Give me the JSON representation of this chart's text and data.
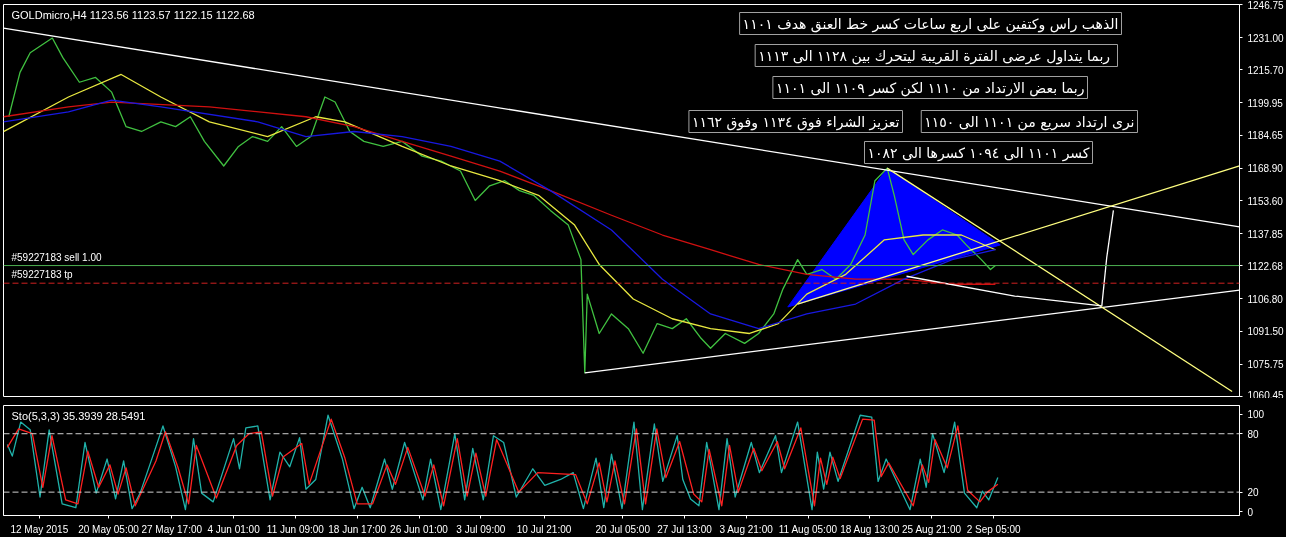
{
  "chart_data": [
    {
      "type": "line",
      "title": "GOLDmicro,H4  1123.56 1123.57 1122.15 1122.68",
      "grid": false,
      "tick_labels": "y",
      "xlim": [
        "2015-05-07T18:00",
        "2015-10-01T09:00"
      ],
      "ylim": [
        1060.45,
        1246.75
      ],
      "yticks": [
        {
          "value": 1246.75,
          "label": "1246.75"
        },
        {
          "value": 1231.0,
          "label": "1231.00"
        },
        {
          "value": 1215.7,
          "label": "1215.70"
        },
        {
          "value": 1199.95,
          "label": "1199.95"
        },
        {
          "value": 1184.65,
          "label": "1184.65"
        },
        {
          "value": 1168.9,
          "label": "1168.90"
        },
        {
          "value": 1153.6,
          "label": "1153.60"
        },
        {
          "value": 1137.85,
          "label": "1137.85"
        },
        {
          "value": 1122.68,
          "label": "1122.68"
        },
        {
          "value": 1106.8,
          "label": "1106.80"
        },
        {
          "value": 1091.5,
          "label": "1091.50"
        },
        {
          "value": 1075.75,
          "label": "1075.75"
        },
        {
          "value": 1060.45,
          "label": "1060.45"
        }
      ],
      "series": [
        {
          "color": "#40c040",
          "x": [
            "2015-05-08T09:00",
            "2015-05-09T17:00",
            "2015-05-10T22:00",
            "2015-05-13T13:00",
            "2015-05-14T19:00",
            "2015-05-16T18:00",
            "2015-05-18T16:00",
            "2015-05-20T14:00",
            "2015-05-22T07:00",
            "2015-05-24T03:00",
            "2015-05-26T10:00",
            "2015-05-28T04:00",
            "2015-05-29T22:00",
            "2015-05-31T14:00",
            "2015-06-02T21:00",
            "2015-06-04T15:00",
            "2015-06-06T07:00",
            "2015-06-08T02:00",
            "2015-06-09T18:00",
            "2015-06-11T12:00",
            "2015-06-13T05:00",
            "2015-06-14T21:00",
            "2015-06-16T02:00",
            "2015-06-17T20:00",
            "2015-06-19T12:00",
            "2015-06-21T19:00",
            "2015-06-24T01:00",
            "2015-06-26T10:00",
            "2015-06-28T16:00",
            "2015-06-30T23:00",
            "2015-07-02T17:00",
            "2015-07-04T10:00",
            "2015-07-06T05:00",
            "2015-07-07T23:00",
            "2015-07-09T16:00",
            "2015-07-11T15:00",
            "2015-07-13T18:00",
            "2015-07-15T06:00",
            "2015-07-15T17:00",
            "2015-07-16T00:00",
            "2015-07-17T10:00",
            "2015-07-18T21:00",
            "2015-07-20T21:00",
            "2015-07-22T15:00",
            "2015-07-24T07:00",
            "2015-07-26T02:00",
            "2015-07-27T18:00",
            "2015-07-29T12:00",
            "2015-07-30T15:00",
            "2015-08-01T09:00",
            "2015-08-03T16:00",
            "2015-08-05T08:00",
            "2015-08-07T03:00",
            "2015-08-08T05:00",
            "2015-08-09T23:00",
            "2015-08-11T01:00",
            "2015-08-12T20:00",
            "2015-08-14T12:00",
            "2015-08-16T06:00",
            "2015-08-17T23:00",
            "2015-08-19T03:00",
            "2015-08-20T14:00",
            "2015-08-21T10:00",
            "2015-08-22T14:00",
            "2015-08-23T16:00",
            "2015-08-25T10:00",
            "2015-08-27T03:00",
            "2015-08-28T21:00",
            "2015-08-29T23:00",
            "2015-08-31T18:00",
            "2015-09-01T20:00",
            "2015-09-02T10:00"
          ],
          "values": [
            1193.4,
            1214.5,
            1223.8,
            1230.8,
            1221.5,
            1209.8,
            1212.1,
            1205.1,
            1188.7,
            1186.4,
            1191.0,
            1188.7,
            1193.4,
            1181.7,
            1170.0,
            1179.3,
            1184.0,
            1181.7,
            1188.7,
            1179.3,
            1184.0,
            1202.8,
            1200.4,
            1186.4,
            1181.7,
            1179.3,
            1181.7,
            1174.7,
            1172.3,
            1167.6,
            1153.6,
            1160.6,
            1163.0,
            1158.3,
            1156.0,
            1148.9,
            1141.9,
            1125.5,
            1071.7,
            1109.1,
            1090.4,
            1099.7,
            1092.7,
            1081.0,
            1095.1,
            1092.7,
            1097.4,
            1088.1,
            1083.4,
            1090.4,
            1085.7,
            1090.4,
            1099.7,
            1111.5,
            1125.5,
            1118.5,
            1120.8,
            1116.2,
            1123.2,
            1137.2,
            1163.0,
            1169.0,
            1156.0,
            1134.9,
            1127.9,
            1134.9,
            1139.6,
            1137.2,
            1132.5,
            1125.5,
            1120.8,
            1122.7
          ]
        },
        {
          "color": "#e8e840",
          "x": [
            "2015-05-07T18:00",
            "2015-05-15T11:00",
            "2015-05-21T17:00",
            "2015-05-26T10:00",
            "2015-06-01T04:00",
            "2015-06-08T02:00",
            "2015-06-13T19:00",
            "2015-06-17T06:00",
            "2015-06-24T01:00",
            "2015-06-29T20:00",
            "2015-07-05T15:00",
            "2015-07-10T07:00",
            "2015-07-14T12:00",
            "2015-07-17T10:00",
            "2015-07-21T11:00",
            "2015-07-26T02:00",
            "2015-07-30T15:00",
            "2015-08-04T06:00",
            "2015-08-07T16:00",
            "2015-08-11T01:00",
            "2015-08-15T16:00",
            "2015-08-20T06:00",
            "2015-08-24T20:00",
            "2015-08-29T09:00",
            "2015-09-02T10:00"
          ],
          "values": [
            1186.3,
            1202.8,
            1213.5,
            1202.8,
            1191.0,
            1184.0,
            1193.4,
            1191.0,
            1179.3,
            1170.0,
            1163.0,
            1155.9,
            1141.9,
            1123.2,
            1106.8,
            1097.4,
            1092.7,
            1090.4,
            1095.1,
            1109.1,
            1118.5,
            1134.9,
            1137.2,
            1137.2,
            1130.2
          ]
        },
        {
          "color": "#d01010",
          "x": [
            "2015-05-07T18:00",
            "2015-05-15T11:00",
            "2015-05-20T14:00",
            "2015-06-01T04:00",
            "2015-06-12T15:00",
            "2015-06-18T08:00",
            "2015-06-24T01:00",
            "2015-06-29T20:00",
            "2015-07-05T15:00",
            "2015-07-11T15:00",
            "2015-07-18T21:00",
            "2015-07-24T22:00",
            "2015-07-30T15:00",
            "2015-08-05T08:00",
            "2015-08-11T01:00",
            "2015-08-16T20:00",
            "2015-08-22T14:00",
            "2015-08-28T07:00",
            "2015-09-02T10:00"
          ],
          "values": [
            1193.4,
            1198.1,
            1200.4,
            1198.1,
            1193.4,
            1188.7,
            1181.7,
            1174.7,
            1167.6,
            1158.3,
            1146.6,
            1137.2,
            1130.2,
            1123.2,
            1118.5,
            1116.2,
            1116.2,
            1113.8,
            1113.8
          ]
        },
        {
          "color": "#1818e0",
          "x": [
            "2015-05-07T18:00",
            "2015-05-15T11:00",
            "2015-05-20T14:00",
            "2015-05-26T10:00",
            "2015-06-06T22:00",
            "2015-06-12T15:00",
            "2015-06-18T08:00",
            "2015-06-24T01:00",
            "2015-06-29T20:00",
            "2015-07-05T15:00",
            "2015-07-11T15:00",
            "2015-07-18T21:00",
            "2015-07-24T22:00",
            "2015-07-30T15:00",
            "2015-08-05T08:00",
            "2015-08-11T01:00",
            "2015-08-16T20:00",
            "2015-08-22T14:00",
            "2015-08-28T07:00",
            "2015-09-02T10:00"
          ],
          "values": [
            1191.0,
            1195.7,
            1201.3,
            1198.1,
            1191.0,
            1184.0,
            1186.4,
            1184.0,
            1179.3,
            1172.3,
            1158.3,
            1139.6,
            1116.2,
            1099.7,
            1092.7,
            1099.7,
            1104.4,
            1116.2,
            1125.5,
            1130.2
          ]
        },
        {
          "type": "area",
          "color": "#0000ff",
          "x": [
            "2015-08-08T19:00",
            "2015-08-20T14:00",
            "2015-09-03T00:00",
            "2015-08-08T19:00"
          ],
          "values": [
            1103.0,
            1169.0,
            1132.5,
            1103.0
          ]
        },
        {
          "color": "#ffffff",
          "x": [
            "2015-05-07T18:00",
            "2015-10-01T09:00"
          ],
          "values": [
            1235.5,
            1141.1
          ]
        },
        {
          "color": "#ffffff",
          "x": [
            "2015-07-15T17:00",
            "2015-10-01T09:00"
          ],
          "values": [
            1071.7,
            1111.0
          ]
        },
        {
          "color": "#ffff80",
          "x": [
            "2015-08-20T14:00",
            "2015-09-30T12:00"
          ],
          "values": [
            1169.0,
            1062.8
          ]
        },
        {
          "color": "#ffff80",
          "x": [
            "2015-08-09T23:00",
            "2015-10-01T09:00"
          ],
          "values": [
            1104.4,
            1170.0
          ]
        },
        {
          "color": "#ffffff",
          "x": [
            "2015-08-22T21:00",
            "2015-09-04T17:00",
            "2015-09-15T01:00"
          ],
          "values": [
            1117.6,
            1108.2,
            1103.5
          ]
        },
        {
          "color": "#ffffff",
          "x": [
            "2015-09-15T01:00",
            "2015-09-15T15:00",
            "2015-09-16T10:00"
          ],
          "values": [
            1103.5,
            1126.5,
            1148.9
          ]
        }
      ],
      "ref_lines": [
        {
          "axis": "y",
          "value": 1122.68,
          "label": "#59227183 sell 1.00",
          "color": "#4caf50",
          "line_style": "solid"
        },
        {
          "axis": "y",
          "value": 1114.3,
          "label": "#59227183 tp",
          "color": "#d02020",
          "line_style": "dashed"
        }
      ],
      "annotations": [
        "الذهب راس وكتفين على اربع ساعات كسر خط العنق هدف ١١٠١",
        "ربما يتداول عرضى الفترة القريبة  ليتحرك بين ١١٢٨ الى ١١١٣",
        "ربما بعض الارتداد من ١١١٠ لكن كسر ١١٠٩ الى ١١٠١",
        "نرى ارتداد سريع من ١١٠١ الى ١١٥٠",
        "تعزيز الشراء فوق ١١٣٤ وفوق ١١٦٢",
        "كسر ١١٠١ الى ١٠٩٤ كسرها الى ١٠٨٢"
      ]
    },
    {
      "type": "line",
      "title": "Sto(5,3,3) 35.3939 28.5491",
      "grid": false,
      "xlim": [
        "2015-05-07T18:00",
        "2015-10-01T09:00"
      ],
      "ylim": [
        -4,
        109
      ],
      "yticks": [
        0,
        20,
        80,
        100
      ],
      "xticks": [
        {
          "value": "2015-05-12",
          "label": "12 May 2015"
        },
        {
          "value": "2015-05-20T05:00",
          "label": "20 May 05:00"
        },
        {
          "value": "2015-05-27T17:00",
          "label": "27 May 17:00"
        },
        {
          "value": "2015-06-04T01:00",
          "label": "4 Jun 01:00"
        },
        {
          "value": "2015-06-11T09:00",
          "label": "11 Jun 09:00"
        },
        {
          "value": "2015-06-18T17:00",
          "label": "18 Jun 17:00"
        },
        {
          "value": "2015-06-26T01:00",
          "label": "26 Jun 01:00"
        },
        {
          "value": "2015-07-03T09:00",
          "label": "3 Jul 09:00"
        },
        {
          "value": "2015-07-10T21:00",
          "label": "10 Jul 21:00"
        },
        {
          "value": "2015-07-20T05:00",
          "label": "20 Jul 05:00"
        },
        {
          "value": "2015-07-27T13:00",
          "label": "27 Jul 13:00"
        },
        {
          "value": "2015-08-03T21:00",
          "label": "3 Aug 21:00"
        },
        {
          "value": "2015-08-11T05:00",
          "label": "11 Aug 05:00"
        },
        {
          "value": "2015-08-18T13:00",
          "label": "18 Aug 13:00"
        },
        {
          "value": "2015-08-25T21:00",
          "label": "25 Aug 21:00"
        },
        {
          "value": "2015-09-02T05:00",
          "label": "2 Sep 05:00"
        }
      ],
      "series": [
        {
          "color": "#20b2aa",
          "x": [
            "2015-05-08T05:00",
            "2015-05-08T19:00",
            "2015-05-09T19:00",
            "2015-05-10T22:00",
            "2015-05-12T02:00",
            "2015-05-13T04:00",
            "2015-05-14T17:00",
            "2015-05-16T08:00",
            "2015-05-17T10:00",
            "2015-05-18T18:00",
            "2015-05-20T01:00",
            "2015-05-21T01:00",
            "2015-05-22T00:00",
            "2015-05-23T00:00",
            "2015-05-23T23:00",
            "2015-05-25T11:00",
            "2015-05-26T16:00",
            "2015-05-28T04:00",
            "2015-05-29T08:00",
            "2015-05-30T07:00",
            "2015-05-31T06:00",
            "2015-06-01T15:00",
            "2015-06-04T01:00",
            "2015-06-04T18:00",
            "2015-06-05T12:00",
            "2015-06-06T22:00",
            "2015-06-08T09:00",
            "2015-06-09T13:00",
            "2015-06-10T17:00",
            "2015-06-11T21:00",
            "2015-06-12T15:00",
            "2015-06-13T19:00",
            "2015-06-15T06:00",
            "2015-06-16T23:00",
            "2015-06-18T08:00",
            "2015-06-19T07:00",
            "2015-06-20T06:00",
            "2015-06-21T23:00",
            "2015-06-22T21:00",
            "2015-06-24T08:00",
            "2015-06-26T12:00",
            "2015-06-27T10:00",
            "2015-06-28T15:00",
            "2015-06-30T07:00",
            "2015-07-01T11:00",
            "2015-07-02T10:00",
            "2015-07-03T16:00",
            "2015-07-04T21:00",
            "2015-07-06T02:00",
            "2015-07-07T14:00",
            "2015-07-09T13:00",
            "2015-07-10T23:00",
            "2015-07-12T20:00",
            "2015-07-14T08:00",
            "2015-07-15T13:00",
            "2015-07-17T01:00",
            "2015-07-17T23:00",
            "2015-07-18T21:00",
            "2015-07-20T03:00",
            "2015-07-21T13:00",
            "2015-07-22T13:00",
            "2015-07-23T23:00",
            "2015-07-24T23:00",
            "2015-07-26T16:00",
            "2015-07-27T08:00",
            "2015-07-28T06:00",
            "2015-07-29T06:00",
            "2015-07-30T04:00",
            "2015-07-31T15:00",
            "2015-08-01T14:00",
            "2015-08-02T13:00",
            "2015-08-04T11:00",
            "2015-08-05T10:00",
            "2015-08-07T08:00",
            "2015-08-08T01:00",
            "2015-08-09T23:00",
            "2015-08-11T16:00",
            "2015-08-12T07:00",
            "2015-08-13T01:00",
            "2015-08-13T19:00",
            "2015-08-14T18:00",
            "2015-08-17T09:00",
            "2015-08-18T18:00",
            "2015-08-19T12:00",
            "2015-08-20T11:00",
            "2015-08-23T07:00",
            "2015-08-24T12:00",
            "2015-08-25T05:00",
            "2015-08-25T23:00",
            "2015-08-27T08:00",
            "2015-08-28T14:00",
            "2015-08-29T18:00",
            "2015-08-31T05:00",
            "2015-08-31T21:00",
            "2015-09-01T15:00",
            "2015-09-02T17:00"
          ],
          "values": [
            69,
            57,
            92,
            84,
            15,
            84,
            8,
            4,
            71,
            19,
            54,
            13,
            52,
            3,
            19,
            57,
            88,
            46,
            2,
            75,
            19,
            10,
            75,
            44,
            86,
            88,
            12,
            61,
            46,
            76,
            23,
            33,
            99,
            54,
            3,
            25,
            4,
            54,
            23,
            71,
            12,
            54,
            2,
            80,
            12,
            65,
            12,
            78,
            71,
            15,
            44,
            27,
            33,
            40,
            3,
            55,
            4,
            59,
            3,
            92,
            2,
            90,
            31,
            78,
            33,
            13,
            6,
            71,
            2,
            75,
            15,
            71,
            40,
            78,
            40,
            92,
            2,
            61,
            23,
            61,
            31,
            99,
            97,
            31,
            54,
            2,
            54,
            25,
            80,
            40,
            92,
            19,
            4,
            21,
            12,
            35
          ]
        },
        {
          "color": "#ff2020",
          "x": [
            "2015-05-08T05:00",
            "2015-05-09T13:00",
            "2015-05-11T04:00",
            "2015-05-12T10:00",
            "2015-05-13T12:00",
            "2015-05-15T03:00",
            "2015-05-16T14:00",
            "2015-05-17T18:00",
            "2015-05-19T01:00",
            "2015-05-20T09:00",
            "2015-05-21T08:00",
            "2015-05-22T07:00",
            "2015-05-23T09:00",
            "2015-05-25T20:00",
            "2015-05-26T23:00",
            "2015-05-28T11:00",
            "2015-05-29T17:00",
            "2015-05-30T15:00",
            "2015-06-02T00:00",
            "2015-06-04T10:00",
            "2015-06-05T21:00",
            "2015-06-07T08:00",
            "2015-06-08T16:00",
            "2015-06-09T22:00",
            "2015-06-12T03:00",
            "2015-06-13T00:00",
            "2015-06-15T15:00",
            "2015-06-17T06:00",
            "2015-06-18T17:00",
            "2015-06-20T13:00",
            "2015-06-22T06:00",
            "2015-06-23T06:00",
            "2015-06-24T17:00",
            "2015-06-26T18:00",
            "2015-06-27T19:00",
            "2015-06-28T23:00",
            "2015-06-30T14:00",
            "2015-07-01T18:00",
            "2015-07-02T19:00",
            "2015-07-03T23:00",
            "2015-07-05T06:00",
            "2015-07-07T21:00",
            "2015-07-10T03:00",
            "2015-07-14T15:00",
            "2015-07-16T00:00",
            "2015-07-17T10:00",
            "2015-07-18T08:00",
            "2015-07-19T07:00",
            "2015-07-20T10:00",
            "2015-07-21T20:00",
            "2015-07-22T22:00",
            "2015-07-24T06:00",
            "2015-07-25T08:00",
            "2015-07-26T23:00",
            "2015-07-28T15:00",
            "2015-07-29T14:00",
            "2015-07-30T11:00",
            "2015-07-31T23:00",
            "2015-08-01T21:00",
            "2015-08-02T22:00",
            "2015-08-04T18:00",
            "2015-08-05T17:00",
            "2015-08-07T13:00",
            "2015-08-08T10:00",
            "2015-08-10T08:00",
            "2015-08-11T23:00",
            "2015-08-12T16:00",
            "2015-08-13T10:00",
            "2015-08-14T03:00",
            "2015-08-15T00:00",
            "2015-08-17T16:00",
            "2015-08-19T01:00",
            "2015-08-19T21:00",
            "2015-08-20T18:00",
            "2015-08-23T16:00",
            "2015-08-24T18:00",
            "2015-08-25T12:00",
            "2015-08-26T06:00",
            "2015-08-27T17:00",
            "2015-08-28T23:00",
            "2015-08-30T03:00",
            "2015-08-31T14:00",
            "2015-09-01T11:00",
            "2015-09-02T17:00"
          ],
          "values": [
            66,
            85,
            80,
            25,
            78,
            12,
            8,
            62,
            25,
            48,
            18,
            45,
            6,
            52,
            82,
            45,
            8,
            68,
            14,
            68,
            80,
            82,
            16,
            56,
            70,
            28,
            95,
            55,
            8,
            8,
            48,
            28,
            66,
            16,
            48,
            6,
            75,
            16,
            60,
            16,
            74,
            20,
            40,
            38,
            8,
            50,
            10,
            52,
            8,
            85,
            8,
            85,
            35,
            72,
            18,
            10,
            64,
            6,
            68,
            20,
            65,
            42,
            72,
            44,
            86,
            6,
            55,
            28,
            56,
            34,
            95,
            94,
            36,
            50,
            6,
            48,
            30,
            74,
            45,
            88,
            22,
            10,
            20,
            28
          ]
        }
      ],
      "ref_lines": [
        {
          "axis": "y",
          "value": 80,
          "color": "#d0d0d0",
          "line_style": "dashed"
        },
        {
          "axis": "y",
          "value": 20,
          "color": "#d0d0d0",
          "line_style": "dashed"
        }
      ]
    }
  ]
}
